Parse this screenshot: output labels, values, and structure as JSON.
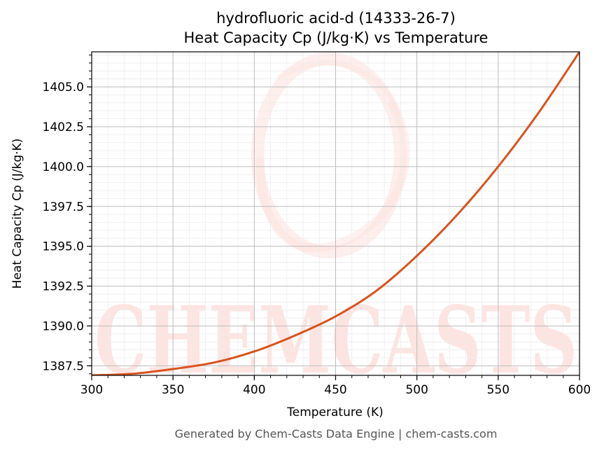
{
  "colors": {
    "line": "#d9531e",
    "watermark": "#fde0dc",
    "grid_major": "#bdbdbd",
    "grid_minor": "#ececec"
  },
  "watermark": {
    "text": "CHEMCASTS"
  },
  "footer": {
    "text": "Generated by Chem-Casts Data Engine | chem-casts.com"
  },
  "chart_data": {
    "type": "line",
    "title": "hydrofluoric acid-d (14333-26-7)",
    "subtitle": "Heat Capacity Cp (J/kg·K) vs Temperature",
    "xlabel": "Temperature (K)",
    "ylabel": "Heat Capacity Cp (J/kg·K)",
    "xlim": [
      300,
      600
    ],
    "ylim": [
      1386.9,
      1407.2
    ],
    "xticks": [
      300,
      350,
      400,
      450,
      500,
      550,
      600
    ],
    "xtick_labels": [
      "300",
      "350",
      "400",
      "450",
      "500",
      "550",
      "600"
    ],
    "yticks": [
      1387.5,
      1390.0,
      1392.5,
      1395.0,
      1397.5,
      1400.0,
      1402.5,
      1405.0
    ],
    "ytick_labels": [
      "1387.5",
      "1390.0",
      "1392.5",
      "1395.0",
      "1397.5",
      "1400.0",
      "1402.5",
      "1405.0"
    ],
    "grid": true,
    "series": [
      {
        "x": [
          300,
          325,
          350,
          375,
          400,
          425,
          450,
          475,
          500,
          525,
          550,
          575,
          600
        ],
        "y": [
          1386.9,
          1387.0,
          1387.3,
          1387.7,
          1388.4,
          1389.4,
          1390.6,
          1392.2,
          1394.4,
          1397.0,
          1400.0,
          1403.4,
          1407.2
        ]
      }
    ]
  }
}
